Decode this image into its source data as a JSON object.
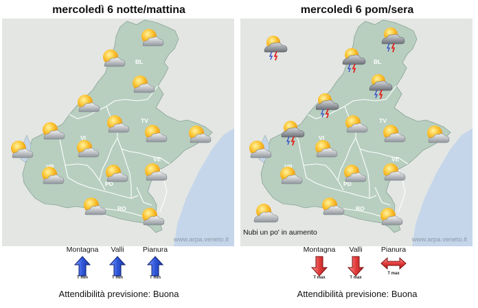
{
  "panels": [
    {
      "title": "mercoledì  6 notte/mattina",
      "caption": "",
      "credit": "www.arpa.veneto.it",
      "labels": {
        "BL": "BL",
        "TV": "TV",
        "VI": "VI",
        "VR": "VR",
        "PD": "PD",
        "VE": "VE",
        "RO": "RO"
      },
      "icons": [
        "sun-cloud",
        "sun-cloud",
        "sun-cloud",
        "sun-cloud",
        "sun-cloud",
        "sun-cloud",
        "sun-cloud",
        "sun-cloud",
        "sun-cloud",
        "sun-cloud",
        "sun-cloud",
        "sun-cloud",
        "sun-cloud",
        "sun-cloud",
        "sun-cloud",
        "sun-cloud"
      ],
      "trends": [
        {
          "zone": "Montagna",
          "tlabel": "T min",
          "direction": "up",
          "color": "blue"
        },
        {
          "zone": "Valli",
          "tlabel": "T min",
          "direction": "up",
          "color": "blue"
        },
        {
          "zone": "Pianura",
          "tlabel": "T min",
          "direction": "up",
          "color": "blue"
        }
      ],
      "reliability": "Attendibilità previsione: Buona"
    },
    {
      "title": "mercoledì  6 pom/sera",
      "caption": "Nubi un po' in aumento",
      "credit": "www.arpa.veneto.it",
      "labels": {
        "BL": "BL",
        "TV": "TV",
        "VI": "VI",
        "VR": "VR",
        "PD": "PD",
        "VE": "VE",
        "RO": "RO"
      },
      "icons": [
        "thunderstorm",
        "thunderstorm",
        "thunderstorm",
        "thunderstorm",
        "thunderstorm",
        "thunderstorm",
        "sun-cloud",
        "sun-cloud",
        "sun-cloud",
        "sun-cloud",
        "sun-cloud",
        "sun-cloud",
        "sun-cloud",
        "sun-cloud",
        "sun-cloud",
        "sun-cloud",
        "cloudy-sun"
      ],
      "trends": [
        {
          "zone": "Montagna",
          "tlabel": "T max",
          "direction": "down",
          "color": "red"
        },
        {
          "zone": "Valli",
          "tlabel": "T max",
          "direction": "down",
          "color": "red"
        },
        {
          "zone": "Pianura",
          "tlabel": "T max",
          "direction": "stable",
          "color": "red"
        }
      ],
      "reliability": "Attendibilità previsione: Buona"
    }
  ],
  "colors": {
    "land": "#b8cfc0",
    "land_outside": "#e3e6e3",
    "sea": "#c6d6ea",
    "lake": "#c6d6ea",
    "border": "#ffffff",
    "up_arrow": "#3355cc",
    "down_arrow": "#e34444"
  }
}
